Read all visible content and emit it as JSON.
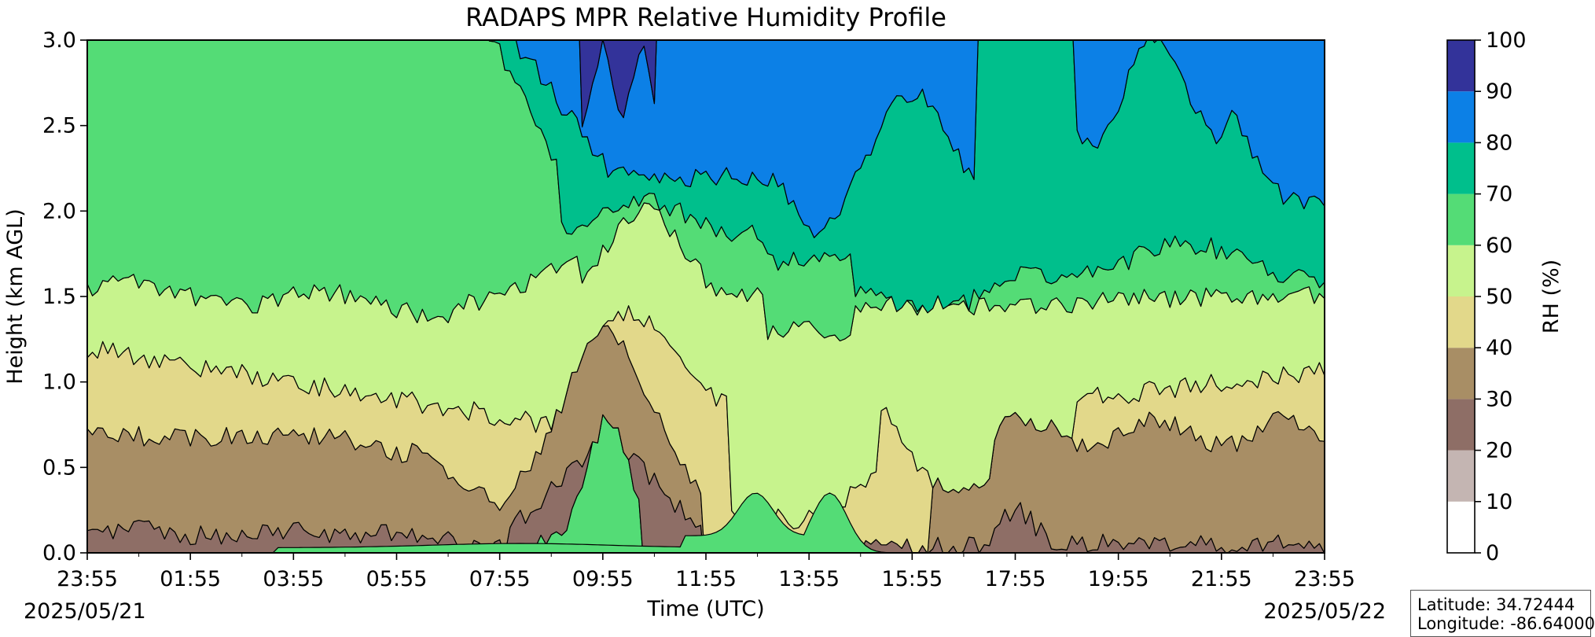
{
  "chart_data": {
    "type": "heatmap",
    "title": "RADAPS MPR Relative Humidity Profile",
    "xlabel": "Time (UTC)",
    "ylabel": "Height (km AGL)",
    "x_ticks": [
      "23:55",
      "01:55",
      "03:55",
      "05:55",
      "07:55",
      "09:55",
      "11:55",
      "13:55",
      "15:55",
      "17:55",
      "19:55",
      "21:55",
      "23:55"
    ],
    "start_date": "2025/05/21",
    "end_date": "2025/05/22",
    "y_ticks": [
      0.0,
      0.5,
      1.0,
      1.5,
      2.0,
      2.5,
      3.0
    ],
    "y_tick_labels": [
      "0.0",
      "0.5",
      "1.0",
      "1.5",
      "2.0",
      "2.5",
      "3.0"
    ],
    "xlim": [
      "2025/05/21 23:55",
      "2025/05/22 23:55"
    ],
    "ylim": [
      0,
      3
    ],
    "colorbar": {
      "label": "RH (%)",
      "levels": [
        0,
        10,
        20,
        30,
        40,
        50,
        60,
        70,
        80,
        90,
        100
      ],
      "level_labels": [
        "0",
        "10",
        "20",
        "30",
        "40",
        "50",
        "60",
        "70",
        "80",
        "90",
        "100"
      ],
      "colors": [
        "#ffffff",
        "#c4b5b2",
        "#8e6e66",
        "#a88e65",
        "#e2d88a",
        "#c7f38d",
        "#54dc76",
        "#00bf8c",
        "#0c80e6",
        "#33339a"
      ]
    },
    "grid": false
  },
  "info": {
    "latitude": "Latitude: 34.72444",
    "longitude": "Longitude: -86.64000"
  }
}
